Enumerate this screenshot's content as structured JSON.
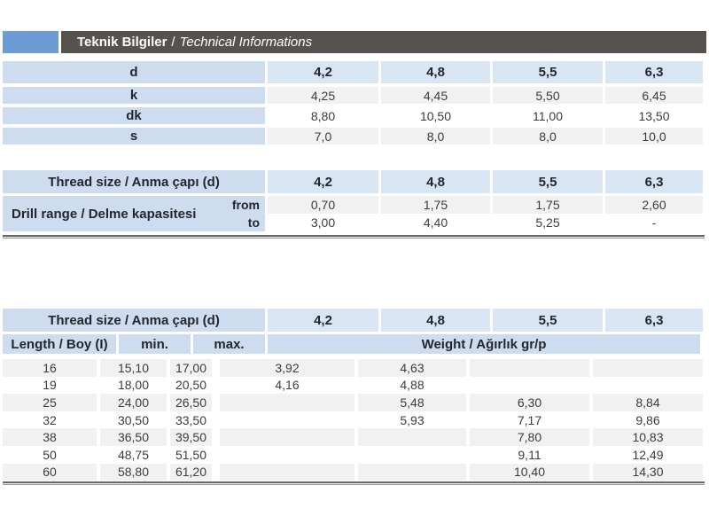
{
  "header": {
    "title_bold": "Teknik Bilgiler",
    "separator": "/",
    "title_italic": "Technical Informations"
  },
  "colors": {
    "accent_blue": "#6d9bd3",
    "titlebar_gray": "#56524e",
    "label_blue": "#cddcee",
    "header_row_blue": "#d8e5f2",
    "stripe_gray": "#f1f1f1"
  },
  "sizes_table": {
    "rows": [
      {
        "label": "d",
        "values": [
          "4,2",
          "4,8",
          "5,5",
          "6,3"
        ]
      },
      {
        "label": "k",
        "values": [
          "4,25",
          "4,45",
          "5,50",
          "6,45"
        ]
      },
      {
        "label": "dk",
        "values": [
          "8,80",
          "10,50",
          "11,00",
          "13,50"
        ]
      },
      {
        "label": "s",
        "values": [
          "7,0",
          "8,0",
          "8,0",
          "10,0"
        ]
      }
    ]
  },
  "drill_table": {
    "header_label": "Thread size / Anma çapı (d)",
    "columns": [
      "4,2",
      "4,8",
      "5,5",
      "6,3"
    ],
    "row_label": "Drill range / Delme kapasitesi",
    "sub_rows": [
      {
        "label": "from",
        "values": [
          "0,70",
          "1,75",
          "1,75",
          "2,60"
        ]
      },
      {
        "label": "to",
        "values": [
          "3,00",
          "4,40",
          "5,25",
          "-"
        ]
      }
    ]
  },
  "weight_table": {
    "header_label": "Thread size / Anma çapı (d)",
    "columns": [
      "4,2",
      "4,8",
      "5,5",
      "6,3"
    ],
    "length_label": "Length / Boy (I)",
    "min_label": "min.",
    "max_label": "max.",
    "weight_label": "Weight / Ağırlık gr/p",
    "rows": [
      {
        "length": "16",
        "min": "15,10",
        "max": "17,00",
        "weights": [
          "3,92",
          "4,63",
          "",
          ""
        ]
      },
      {
        "length": "19",
        "min": "18,00",
        "max": "20,50",
        "weights": [
          "4,16",
          "4,88",
          "",
          ""
        ]
      },
      {
        "length": "25",
        "min": "24,00",
        "max": "26,50",
        "weights": [
          "",
          "5,48",
          "6,30",
          "8,84"
        ]
      },
      {
        "length": "32",
        "min": "30,50",
        "max": "33,50",
        "weights": [
          "",
          "5,93",
          "7,17",
          "9,86"
        ]
      },
      {
        "length": "38",
        "min": "36,50",
        "max": "39,50",
        "weights": [
          "",
          "",
          "7,80",
          "10,83"
        ]
      },
      {
        "length": "50",
        "min": "48,75",
        "max": "51,50",
        "weights": [
          "",
          "",
          "9,11",
          "12,49"
        ]
      },
      {
        "length": "60",
        "min": "58,80",
        "max": "61,20",
        "weights": [
          "",
          "",
          "10,40",
          "14,30"
        ]
      }
    ]
  }
}
